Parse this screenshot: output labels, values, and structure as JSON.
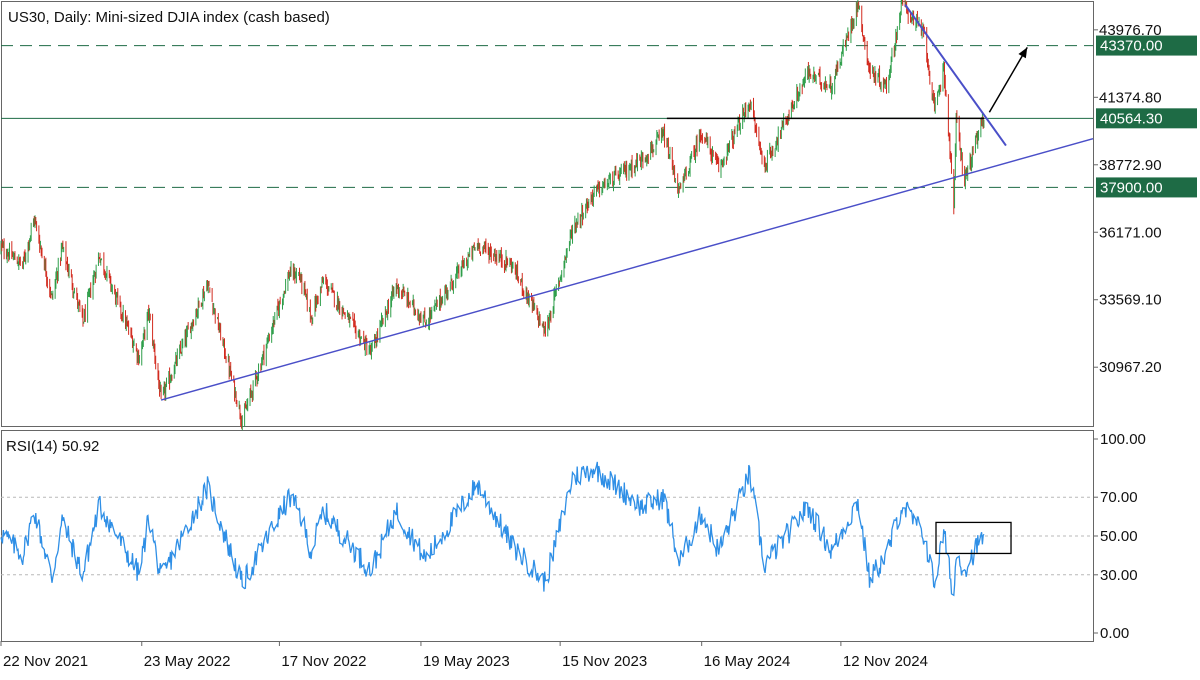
{
  "chart_data": {
    "type": "candlestick",
    "title": "US30, Daily:  Mini-sized DJIA index (cash based)",
    "date_range": {
      "start": "2021-11-22",
      "end": "2025-05-16"
    },
    "y_ticks": [
      "43976.70",
      "41374.80",
      "38772.90",
      "36171.00",
      "33569.10",
      "30967.20"
    ],
    "y_range": [
      28700,
      45050
    ],
    "x_tick_labels": [
      "22 Nov 2021",
      "23 May 2022",
      "17 Nov 2022",
      "19 May 2023",
      "15 Nov 2023",
      "16 May 2024",
      "12 Nov 2024"
    ],
    "key_levels": [
      {
        "label": "43370.00",
        "value": 43370.0,
        "style": "dashed",
        "color": "#1e6b45"
      },
      {
        "label": "40564.30",
        "value": 40564.3,
        "style": "solid",
        "color": "#1e6b45"
      },
      {
        "label": "37900.00",
        "value": 37900.0,
        "style": "dashed",
        "color": "#1e6b45"
      }
    ],
    "colors": {
      "bull": "#2e9e4a",
      "bear": "#d22b1f",
      "trendline": "#4a4fc8",
      "rsi": "#2f8fe6",
      "grid": "#b8b8b8"
    },
    "price_anchors": [
      [
        "2021-11-22",
        35600
      ],
      [
        "2021-12-20",
        34900
      ],
      [
        "2022-01-04",
        36700
      ],
      [
        "2022-01-27",
        33600
      ],
      [
        "2022-02-09",
        35600
      ],
      [
        "2022-03-08",
        32700
      ],
      [
        "2022-03-29",
        35300
      ],
      [
        "2022-05-20",
        31300
      ],
      [
        "2022-06-01",
        33100
      ],
      [
        "2022-06-17",
        29700
      ],
      [
        "2022-08-16",
        34200
      ],
      [
        "2022-09-30",
        28900
      ],
      [
        "2022-11-30",
        34600
      ],
      [
        "2022-12-13",
        34500
      ],
      [
        "2022-12-28",
        32900
      ],
      [
        "2023-01-13",
        34300
      ],
      [
        "2023-03-15",
        31500
      ],
      [
        "2023-04-17",
        34100
      ],
      [
        "2023-05-25",
        32700
      ],
      [
        "2023-07-31",
        35700
      ],
      [
        "2023-09-14",
        34900
      ],
      [
        "2023-10-27",
        32300
      ],
      [
        "2023-12-01",
        36300
      ],
      [
        "2023-12-29",
        37700
      ],
      [
        "2024-02-29",
        39000
      ],
      [
        "2024-03-28",
        39900
      ],
      [
        "2024-04-17",
        37700
      ],
      [
        "2024-05-16",
        40050
      ],
      [
        "2024-06-07",
        38600
      ],
      [
        "2024-07-17",
        41200
      ],
      [
        "2024-08-05",
        38700
      ],
      [
        "2024-09-30",
        42300
      ],
      [
        "2024-10-31",
        41800
      ],
      [
        "2024-12-04",
        45000
      ],
      [
        "2024-12-19",
        42400
      ],
      [
        "2025-01-10",
        41800
      ],
      [
        "2025-01-30",
        45000
      ],
      [
        "2025-02-28",
        43800
      ],
      [
        "2025-03-13",
        40800
      ],
      [
        "2025-03-25",
        42600
      ],
      [
        "2025-04-07",
        37200
      ],
      [
        "2025-04-10",
        40500
      ],
      [
        "2025-04-21",
        38200
      ],
      [
        "2025-05-16",
        40600
      ]
    ],
    "rsi": {
      "label": "RSI(14) 50.92",
      "value": 50.92,
      "y_ticks": [
        "100.00",
        "70.00",
        "50.00",
        "30.00",
        "0.00"
      ],
      "levels": [
        70,
        50,
        30
      ],
      "anchors": [
        [
          "2021-11-22",
          52
        ],
        [
          "2021-12-20",
          40
        ],
        [
          "2022-01-04",
          63
        ],
        [
          "2022-01-27",
          28
        ],
        [
          "2022-02-09",
          58
        ],
        [
          "2022-03-08",
          30
        ],
        [
          "2022-03-29",
          66
        ],
        [
          "2022-05-20",
          30
        ],
        [
          "2022-06-01",
          60
        ],
        [
          "2022-06-17",
          28
        ],
        [
          "2022-08-16",
          75
        ],
        [
          "2022-09-30",
          25
        ],
        [
          "2022-11-30",
          70
        ],
        [
          "2022-12-13",
          62
        ],
        [
          "2022-12-28",
          42
        ],
        [
          "2023-01-13",
          63
        ],
        [
          "2023-03-15",
          32
        ],
        [
          "2023-04-17",
          63
        ],
        [
          "2023-05-25",
          38
        ],
        [
          "2023-07-31",
          77
        ],
        [
          "2023-09-14",
          45
        ],
        [
          "2023-10-27",
          26
        ],
        [
          "2023-12-01",
          80
        ],
        [
          "2023-12-29",
          85
        ],
        [
          "2024-02-29",
          65
        ],
        [
          "2024-03-28",
          70
        ],
        [
          "2024-04-17",
          36
        ],
        [
          "2024-05-16",
          62
        ],
        [
          "2024-06-07",
          42
        ],
        [
          "2024-07-17",
          82
        ],
        [
          "2024-08-05",
          35
        ],
        [
          "2024-09-30",
          65
        ],
        [
          "2024-10-31",
          42
        ],
        [
          "2024-12-04",
          68
        ],
        [
          "2024-12-19",
          28
        ],
        [
          "2025-01-10",
          40
        ],
        [
          "2025-01-30",
          66
        ],
        [
          "2025-02-28",
          50
        ],
        [
          "2025-03-13",
          25
        ],
        [
          "2025-03-25",
          52
        ],
        [
          "2025-04-07",
          18
        ],
        [
          "2025-04-10",
          40
        ],
        [
          "2025-04-21",
          33
        ],
        [
          "2025-05-16",
          51
        ]
      ]
    },
    "annotations": {
      "uptrend_line": [
        [
          "2022-06-17",
          29700
        ],
        [
          "2025-05-16",
          38600
        ]
      ],
      "downtrend_line": [
        [
          "2025-02-03",
          44950
        ],
        [
          "2025-05-16",
          40700
        ]
      ],
      "resistance_segment": [
        [
          "2024-04-01",
          40564.3
        ],
        [
          "2025-05-16",
          40564.3
        ]
      ],
      "arrow": [
        [
          "2025-05-23",
          40800
        ],
        [
          "2025-07-11",
          43300
        ]
      ],
      "rsi_box": {
        "date_from": "2025-03-15",
        "date_to": "2025-06-20",
        "rsi_from": 41,
        "rsi_to": 57
      }
    }
  }
}
